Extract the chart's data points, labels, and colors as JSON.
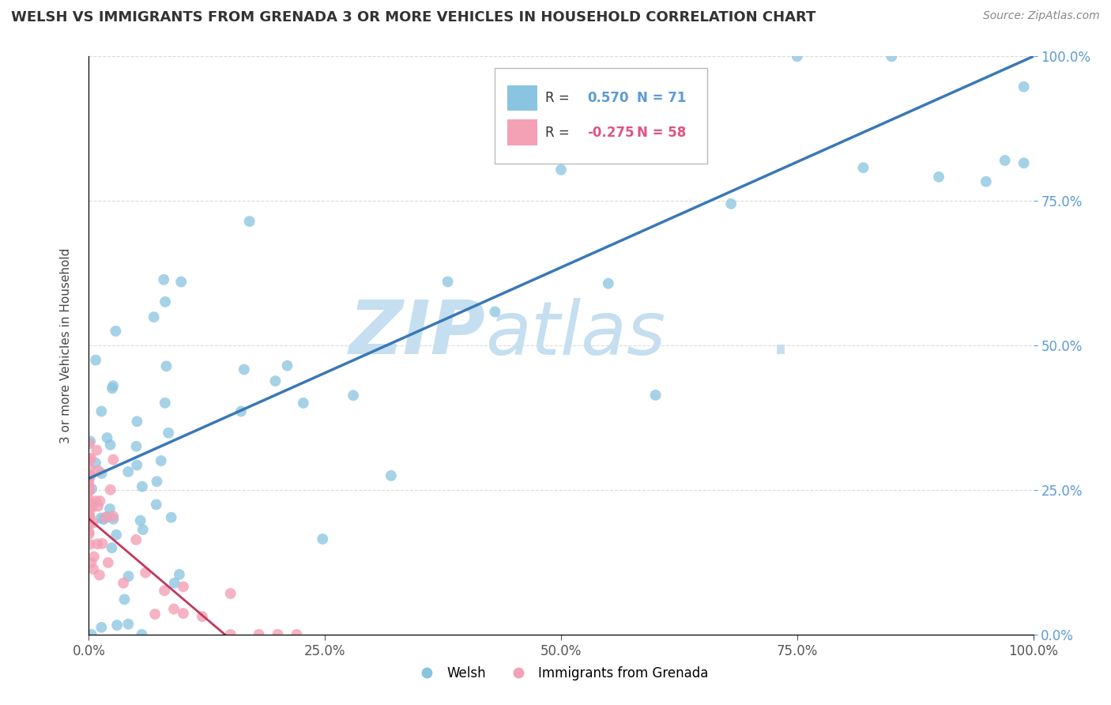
{
  "title": "WELSH VS IMMIGRANTS FROM GRENADA 3 OR MORE VEHICLES IN HOUSEHOLD CORRELATION CHART",
  "source_text": "Source: ZipAtlas.com",
  "ylabel": "3 or more Vehicles in Household",
  "r_welsh": 0.57,
  "n_welsh": 71,
  "r_grenada": -0.275,
  "n_grenada": 58,
  "welsh_color": "#89c4e1",
  "grenada_color": "#f4a0b5",
  "welsh_line_color": "#3a78b5",
  "grenada_line_color": "#c0385a",
  "background_color": "#ffffff",
  "watermark_color_zip": "#c5dff0",
  "watermark_color_atlas": "#c5dff0",
  "xlim": [
    0.0,
    1.0
  ],
  "ylim": [
    0.0,
    1.0
  ],
  "right_tick_color": "#5b9bd5",
  "grid_color": "#cccccc"
}
